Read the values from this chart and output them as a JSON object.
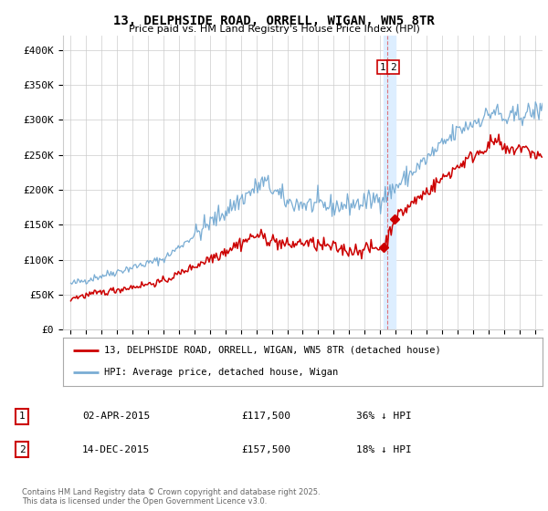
{
  "title": "13, DELPHSIDE ROAD, ORRELL, WIGAN, WN5 8TR",
  "subtitle": "Price paid vs. HM Land Registry's House Price Index (HPI)",
  "legend_label_red": "13, DELPHSIDE ROAD, ORRELL, WIGAN, WN5 8TR (detached house)",
  "legend_label_blue": "HPI: Average price, detached house, Wigan",
  "transaction1_label": "1",
  "transaction1_date": "02-APR-2015",
  "transaction1_price": "£117,500",
  "transaction1_hpi": "36% ↓ HPI",
  "transaction2_label": "2",
  "transaction2_date": "14-DEC-2015",
  "transaction2_price": "£157,500",
  "transaction2_hpi": "18% ↓ HPI",
  "footnote": "Contains HM Land Registry data © Crown copyright and database right 2025.\nThis data is licensed under the Open Government Licence v3.0.",
  "ylim": [
    0,
    420000
  ],
  "yticks": [
    0,
    50000,
    100000,
    150000,
    200000,
    250000,
    300000,
    350000,
    400000
  ],
  "ytick_labels": [
    "£0",
    "£50K",
    "£100K",
    "£150K",
    "£200K",
    "£250K",
    "£300K",
    "£350K",
    "£400K"
  ],
  "vline_x": 2015.75,
  "vline_color": "#dd2222",
  "vband_color": "#ddeeff",
  "background_color": "#ffffff",
  "grid_color": "#cccccc",
  "red_color": "#cc0000",
  "blue_color": "#7aadd4",
  "marker1_x": 2015.25,
  "marker1_y": 117500,
  "marker2_x": 2015.92,
  "marker2_y": 157500,
  "xlim_left": 1994.5,
  "xlim_right": 2025.5
}
